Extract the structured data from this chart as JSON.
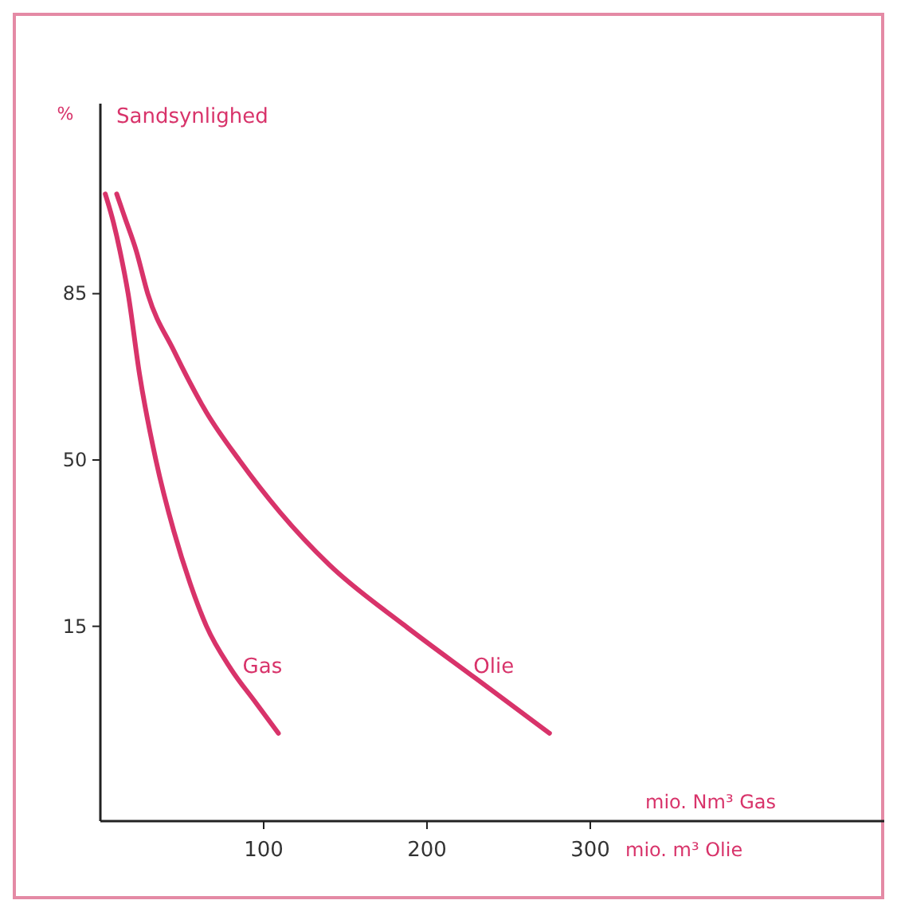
{
  "chart_data": {
    "type": "line",
    "title": "Sandsynlighed",
    "ylabel": "%",
    "xlabel": "mio. m³ Olie",
    "annotations": [
      "mio. Nm³ Gas"
    ],
    "xlim": [
      0,
      480
    ],
    "ylim": [
      -26,
      125
    ],
    "xticks": [
      100,
      200,
      300
    ],
    "yticks": [
      15,
      50,
      85
    ],
    "grid": false,
    "line_style": "solid",
    "series": [
      {
        "name": "Gas",
        "color": "#d8336a",
        "x": [
          3,
          8,
          12,
          17,
          24,
          34,
          45,
          55,
          65,
          80,
          95,
          109
        ],
        "values": [
          106,
          100,
          94,
          85,
          68,
          50,
          35,
          24,
          15,
          6,
          -1,
          -7.5
        ]
      },
      {
        "name": "Olie",
        "color": "#d8336a",
        "x": [
          10,
          15,
          22,
          29,
          45,
          65,
          85,
          110,
          140,
          187,
          230,
          275
        ],
        "values": [
          106,
          101,
          94,
          85,
          73,
          60,
          50,
          39,
          28,
          15,
          4,
          -7.5
        ]
      }
    ]
  }
}
